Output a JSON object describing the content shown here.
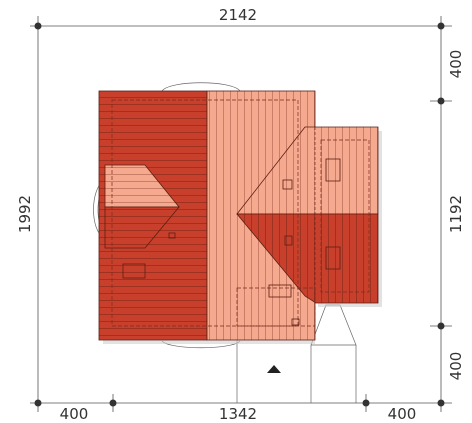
{
  "dimensions": {
    "top_width": "2142",
    "left_height": "1992",
    "right_top": "400",
    "right_middle": "1192",
    "right_bottom": "400",
    "bottom_left": "400",
    "bottom_middle": "1342",
    "bottom_right": "400"
  },
  "colors": {
    "roof_dark": "#C8402C",
    "roof_light": "#F5A98E",
    "roof_mid": "#E06A53",
    "line": "#333333",
    "dash": "#8a3a2a",
    "shadow": "#bdbdbd"
  },
  "icons": {
    "entrance_marker": "triangle-up-icon"
  }
}
